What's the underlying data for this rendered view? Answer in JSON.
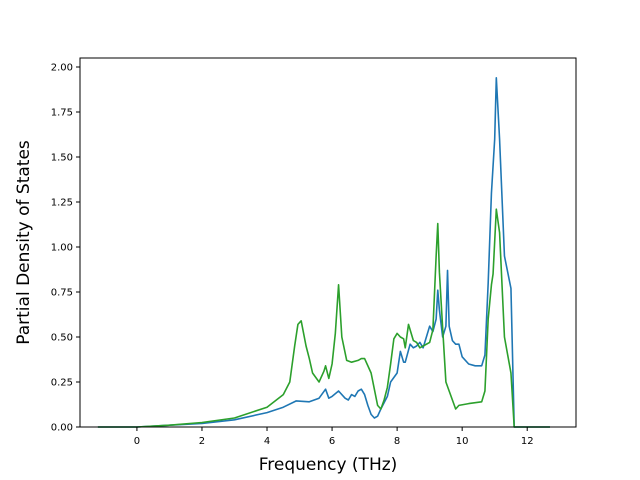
{
  "chart_data": {
    "type": "line",
    "xlabel": "Frequency (THz)",
    "ylabel": "Partial Density of States",
    "xlim": [
      -1.75,
      13.5
    ],
    "ylim": [
      0,
      2.05
    ],
    "xticks": [
      0,
      2,
      4,
      6,
      8,
      10,
      12
    ],
    "yticks": [
      0.0,
      0.25,
      0.5,
      0.75,
      1.0,
      1.25,
      1.5,
      1.75,
      2.0
    ],
    "grid": false,
    "series": [
      {
        "color": "#1f77b4",
        "points": [
          [
            -1.2,
            0.0
          ],
          [
            0.0,
            0.0
          ],
          [
            1.0,
            0.01
          ],
          [
            2.0,
            0.02
          ],
          [
            3.0,
            0.04
          ],
          [
            4.0,
            0.08
          ],
          [
            4.5,
            0.11
          ],
          [
            4.9,
            0.145
          ],
          [
            5.3,
            0.14
          ],
          [
            5.6,
            0.16
          ],
          [
            5.8,
            0.21
          ],
          [
            5.9,
            0.16
          ],
          [
            6.0,
            0.17
          ],
          [
            6.2,
            0.2
          ],
          [
            6.4,
            0.16
          ],
          [
            6.5,
            0.15
          ],
          [
            6.6,
            0.18
          ],
          [
            6.7,
            0.17
          ],
          [
            6.8,
            0.2
          ],
          [
            6.9,
            0.21
          ],
          [
            7.0,
            0.18
          ],
          [
            7.1,
            0.12
          ],
          [
            7.2,
            0.07
          ],
          [
            7.3,
            0.05
          ],
          [
            7.4,
            0.06
          ],
          [
            7.5,
            0.1
          ],
          [
            7.7,
            0.17
          ],
          [
            7.8,
            0.25
          ],
          [
            8.0,
            0.3
          ],
          [
            8.1,
            0.42
          ],
          [
            8.2,
            0.36
          ],
          [
            8.25,
            0.36
          ],
          [
            8.4,
            0.46
          ],
          [
            8.5,
            0.44
          ],
          [
            8.6,
            0.45
          ],
          [
            8.7,
            0.47
          ],
          [
            8.8,
            0.44
          ],
          [
            8.9,
            0.5
          ],
          [
            9.0,
            0.56
          ],
          [
            9.1,
            0.53
          ],
          [
            9.2,
            0.6
          ],
          [
            9.25,
            0.76
          ],
          [
            9.3,
            0.65
          ],
          [
            9.4,
            0.5
          ],
          [
            9.5,
            0.56
          ],
          [
            9.55,
            0.87
          ],
          [
            9.6,
            0.56
          ],
          [
            9.7,
            0.48
          ],
          [
            9.8,
            0.46
          ],
          [
            9.9,
            0.46
          ],
          [
            10.0,
            0.39
          ],
          [
            10.2,
            0.35
          ],
          [
            10.4,
            0.34
          ],
          [
            10.6,
            0.34
          ],
          [
            10.7,
            0.4
          ],
          [
            10.8,
            0.8
          ],
          [
            10.9,
            1.3
          ],
          [
            11.0,
            1.6
          ],
          [
            11.05,
            1.94
          ],
          [
            11.15,
            1.6
          ],
          [
            11.3,
            0.95
          ],
          [
            11.5,
            0.77
          ],
          [
            11.6,
            0.0
          ],
          [
            12.7,
            0.0
          ]
        ]
      },
      {
        "color": "#2ca02c",
        "points": [
          [
            -1.2,
            0.0
          ],
          [
            0.0,
            0.0
          ],
          [
            1.0,
            0.01
          ],
          [
            2.0,
            0.025
          ],
          [
            3.0,
            0.05
          ],
          [
            4.0,
            0.11
          ],
          [
            4.5,
            0.18
          ],
          [
            4.7,
            0.25
          ],
          [
            4.85,
            0.45
          ],
          [
            4.95,
            0.57
          ],
          [
            5.05,
            0.59
          ],
          [
            5.2,
            0.45
          ],
          [
            5.3,
            0.38
          ],
          [
            5.4,
            0.3
          ],
          [
            5.6,
            0.25
          ],
          [
            5.75,
            0.31
          ],
          [
            5.8,
            0.34
          ],
          [
            5.9,
            0.27
          ],
          [
            6.0,
            0.35
          ],
          [
            6.1,
            0.52
          ],
          [
            6.2,
            0.79
          ],
          [
            6.3,
            0.5
          ],
          [
            6.45,
            0.37
          ],
          [
            6.6,
            0.36
          ],
          [
            6.8,
            0.37
          ],
          [
            6.9,
            0.38
          ],
          [
            7.0,
            0.38
          ],
          [
            7.2,
            0.3
          ],
          [
            7.4,
            0.12
          ],
          [
            7.5,
            0.1
          ],
          [
            7.6,
            0.15
          ],
          [
            7.7,
            0.22
          ],
          [
            7.8,
            0.35
          ],
          [
            7.9,
            0.49
          ],
          [
            8.0,
            0.52
          ],
          [
            8.1,
            0.5
          ],
          [
            8.2,
            0.49
          ],
          [
            8.25,
            0.44
          ],
          [
            8.35,
            0.57
          ],
          [
            8.5,
            0.48
          ],
          [
            8.6,
            0.47
          ],
          [
            8.7,
            0.44
          ],
          [
            8.8,
            0.45
          ],
          [
            9.0,
            0.47
          ],
          [
            9.1,
            0.54
          ],
          [
            9.2,
            0.95
          ],
          [
            9.25,
            1.13
          ],
          [
            9.3,
            0.86
          ],
          [
            9.4,
            0.55
          ],
          [
            9.5,
            0.25
          ],
          [
            9.6,
            0.2
          ],
          [
            9.8,
            0.1
          ],
          [
            9.9,
            0.12
          ],
          [
            10.2,
            0.13
          ],
          [
            10.6,
            0.14
          ],
          [
            10.7,
            0.2
          ],
          [
            10.8,
            0.6
          ],
          [
            10.9,
            0.79
          ],
          [
            10.95,
            0.85
          ],
          [
            11.05,
            1.21
          ],
          [
            11.15,
            1.08
          ],
          [
            11.3,
            0.5
          ],
          [
            11.5,
            0.3
          ],
          [
            11.6,
            0.0
          ],
          [
            12.7,
            0.0
          ]
        ]
      }
    ]
  }
}
